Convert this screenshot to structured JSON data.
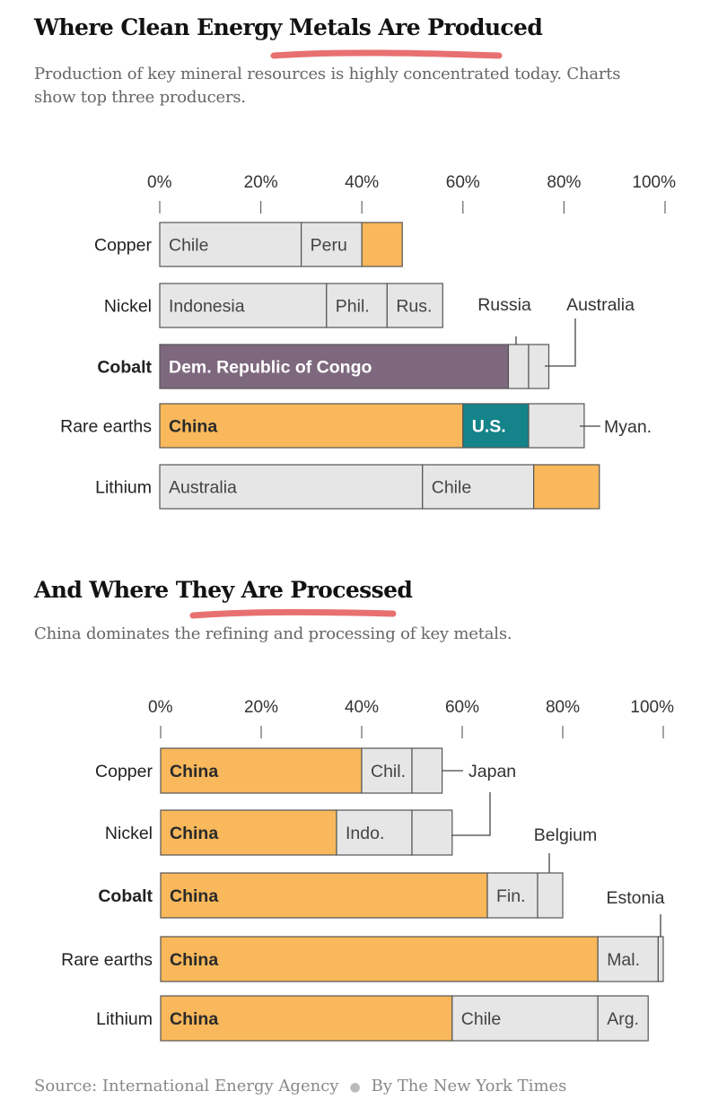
{
  "production": {
    "title": "Where Clean Energy Metals Are Produced",
    "subtitle": "Production of key mineral resources is highly concentrated today. Charts show top three producers."
  },
  "processing": {
    "title": "And Where They Are Processed",
    "subtitle": "China dominates the refining and processing of key metals."
  },
  "footer": {
    "source": "Source: International Energy Agency",
    "byline": "By The New York Times"
  },
  "colors": {
    "orange": "#f8b85b",
    "gray": "#e6e6e6",
    "purple": "#7e687e",
    "teal": "#14838a",
    "border": "#555555",
    "underline": "#e04040"
  },
  "chart_data": [
    {
      "type": "bar",
      "orientation": "horizontal",
      "stacked": true,
      "title": "Where Clean Energy Metals Are Produced",
      "xlim": [
        0,
        100
      ],
      "ticks": [
        "0%",
        "20%",
        "40%",
        "60%",
        "80%",
        "100%"
      ],
      "categories": [
        "Copper",
        "Nickel",
        "Cobalt",
        "Rare earths",
        "Lithium"
      ],
      "bold_category": "Cobalt",
      "rows": [
        {
          "category": "Copper",
          "segments": [
            {
              "label": "Chile",
              "value": 28,
              "color": "gray",
              "bold": false
            },
            {
              "label": "Peru",
              "value": 12,
              "color": "gray",
              "bold": false
            },
            {
              "label": "",
              "value": 8,
              "color": "orange",
              "bold": false
            }
          ]
        },
        {
          "category": "Nickel",
          "segments": [
            {
              "label": "Indonesia",
              "value": 33,
              "color": "gray",
              "bold": false
            },
            {
              "label": "Phil.",
              "value": 12,
              "color": "gray",
              "bold": false
            },
            {
              "label": "Rus.",
              "value": 11,
              "color": "gray",
              "bold": false
            }
          ]
        },
        {
          "category": "Cobalt",
          "segments": [
            {
              "label": "Dem. Republic of Congo",
              "value": 69,
              "color": "purple",
              "bold": true
            },
            {
              "label": "",
              "value": 4,
              "color": "gray",
              "bold": false
            },
            {
              "label": "",
              "value": 4,
              "color": "gray",
              "bold": false
            }
          ]
        },
        {
          "category": "Rare earths",
          "segments": [
            {
              "label": "China",
              "value": 60,
              "color": "orange",
              "bold": true
            },
            {
              "label": "U.S.",
              "value": 13,
              "color": "teal",
              "bold": true
            },
            {
              "label": "",
              "value": 11,
              "color": "gray",
              "bold": false
            }
          ]
        },
        {
          "category": "Lithium",
          "segments": [
            {
              "label": "Australia",
              "value": 52,
              "color": "gray",
              "bold": false
            },
            {
              "label": "Chile",
              "value": 22,
              "color": "gray",
              "bold": false
            },
            {
              "label": "",
              "value": 13,
              "color": "orange",
              "bold": false
            }
          ]
        }
      ],
      "callouts": [
        {
          "label": "Russia",
          "row": 2,
          "segment": 1
        },
        {
          "label": "Australia",
          "row": 2,
          "segment": 2
        },
        {
          "label": "Myan.",
          "row": 3,
          "segment": 2
        }
      ]
    },
    {
      "type": "bar",
      "orientation": "horizontal",
      "stacked": true,
      "title": "And Where They Are Processed",
      "xlim": [
        0,
        100
      ],
      "ticks": [
        "0%",
        "20%",
        "40%",
        "60%",
        "80%",
        "100%"
      ],
      "categories": [
        "Copper",
        "Nickel",
        "Cobalt",
        "Rare earths",
        "Lithium"
      ],
      "bold_category": "Cobalt",
      "rows": [
        {
          "category": "Copper",
          "segments": [
            {
              "label": "China",
              "value": 40,
              "color": "orange",
              "bold": true
            },
            {
              "label": "Chil.",
              "value": 10,
              "color": "gray",
              "bold": false
            },
            {
              "label": "",
              "value": 6,
              "color": "gray",
              "bold": false
            }
          ]
        },
        {
          "category": "Nickel",
          "segments": [
            {
              "label": "China",
              "value": 35,
              "color": "orange",
              "bold": true
            },
            {
              "label": "Indo.",
              "value": 15,
              "color": "gray",
              "bold": false
            },
            {
              "label": "",
              "value": 8,
              "color": "gray",
              "bold": false
            }
          ]
        },
        {
          "category": "Cobalt",
          "segments": [
            {
              "label": "China",
              "value": 65,
              "color": "orange",
              "bold": true
            },
            {
              "label": "Fin.",
              "value": 10,
              "color": "gray",
              "bold": false
            },
            {
              "label": "",
              "value": 5,
              "color": "gray",
              "bold": false
            }
          ]
        },
        {
          "category": "Rare earths",
          "segments": [
            {
              "label": "China",
              "value": 87,
              "color": "orange",
              "bold": true
            },
            {
              "label": "Mal.",
              "value": 12,
              "color": "gray",
              "bold": false
            },
            {
              "label": "",
              "value": 1,
              "color": "gray",
              "bold": false
            }
          ]
        },
        {
          "category": "Lithium",
          "segments": [
            {
              "label": "China",
              "value": 58,
              "color": "orange",
              "bold": true
            },
            {
              "label": "Chile",
              "value": 29,
              "color": "gray",
              "bold": false
            },
            {
              "label": "Arg.",
              "value": 10,
              "color": "gray",
              "bold": false
            }
          ]
        }
      ],
      "callouts": [
        {
          "label": "Japan",
          "row": 0,
          "segment": 2
        },
        {
          "label": "Japan",
          "row": 1,
          "segment": 2
        },
        {
          "label": "Belgium",
          "row": 2,
          "segment": 2
        },
        {
          "label": "Estonia",
          "row": 3,
          "segment": 2
        }
      ]
    }
  ]
}
